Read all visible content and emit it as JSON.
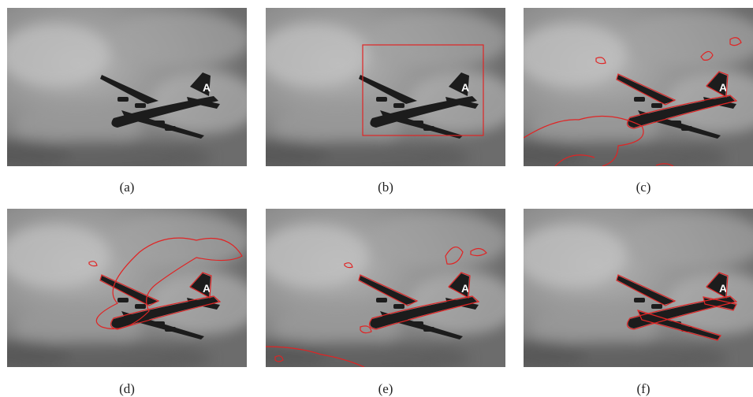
{
  "figure": {
    "panels": [
      {
        "caption": "(a)",
        "overlay": "none"
      },
      {
        "caption": "(b)",
        "overlay": "bounding-box"
      },
      {
        "caption": "(c)",
        "overlay": "contour"
      },
      {
        "caption": "(d)",
        "overlay": "contour"
      },
      {
        "caption": "(e)",
        "overlay": "contour"
      },
      {
        "caption": "(f)",
        "overlay": "contour"
      }
    ],
    "contour_color": "#e02424"
  }
}
